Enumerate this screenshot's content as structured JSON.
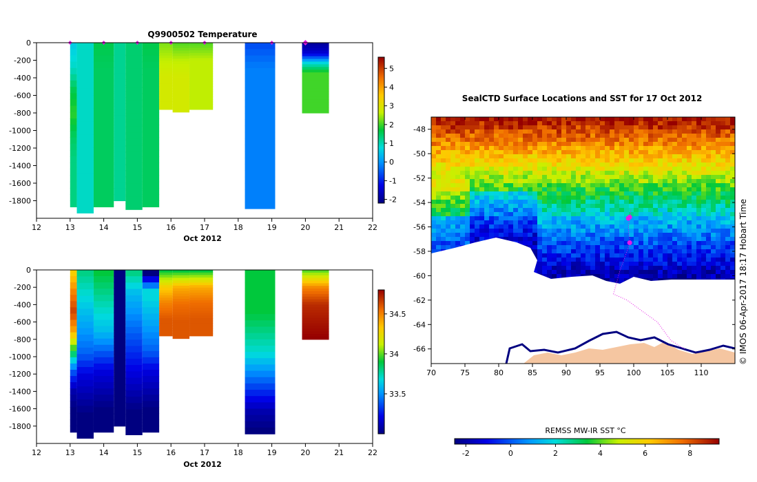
{
  "chart_data": [
    {
      "type": "heatmap",
      "title": "Q9900502  Temperature",
      "xlabel": "Oct 2012",
      "x_ticks": [
        "12",
        "13",
        "14",
        "15",
        "16",
        "17",
        "18",
        "19",
        "20",
        "21",
        "22"
      ],
      "x_range": [
        12,
        22
      ],
      "y_ticks": [
        "0",
        "-200",
        "-400",
        "-600",
        "-800",
        "-1000",
        "-1200",
        "-1400",
        "-1600",
        "-1800"
      ],
      "y_range": [
        -2000,
        0
      ],
      "colorbar_ticks": [
        "5",
        "4",
        "3",
        "2",
        "1",
        "0",
        "-1",
        "-2"
      ],
      "colorbar_range": [
        -2.2,
        5.6
      ],
      "surface_markers": [
        13.0,
        14.0,
        15.0,
        16.0,
        17.0,
        19.0,
        20.0
      ],
      "profiles": [
        {
          "t0": 13.0,
          "t1": 13.2,
          "depth": 1870,
          "values": [
            0.6,
            0.9,
            1.6,
            1.9,
            1.5,
            1.3,
            1.3,
            1.3
          ]
        },
        {
          "t0": 13.2,
          "t1": 13.7,
          "depth": 1940,
          "values": [
            0.9,
            0.9,
            0.9,
            0.9,
            0.9,
            0.9,
            0.9,
            0.9
          ]
        },
        {
          "t0": 13.7,
          "t1": 14.3,
          "depth": 1870,
          "values": [
            1.6,
            1.5,
            1.5,
            1.5,
            1.5,
            1.5,
            1.5,
            1.5
          ]
        },
        {
          "t0": 14.3,
          "t1": 14.65,
          "depth": 1800,
          "values": [
            1.2,
            1.2,
            1.2,
            1.2,
            1.2,
            1.2,
            1.2,
            1.2
          ]
        },
        {
          "t0": 14.65,
          "t1": 15.15,
          "depth": 1900,
          "values": [
            1.4,
            1.4,
            1.4,
            1.4,
            1.4,
            1.4,
            1.4,
            1.4
          ]
        },
        {
          "t0": 15.15,
          "t1": 15.65,
          "depth": 1870,
          "values": [
            1.6,
            1.5,
            1.5,
            1.5,
            1.5,
            1.5,
            1.5,
            1.5
          ]
        },
        {
          "t0": 15.65,
          "t1": 16.05,
          "depth": 760,
          "values": [
            2.3,
            2.6,
            2.8,
            2.8,
            2.8
          ]
        },
        {
          "t0": 16.05,
          "t1": 16.55,
          "depth": 790,
          "values": [
            2.1,
            2.6,
            2.8,
            2.8,
            2.8
          ]
        },
        {
          "t0": 16.55,
          "t1": 17.25,
          "depth": 760,
          "values": [
            2.1,
            2.6,
            2.6,
            2.6,
            2.6
          ]
        },
        {
          "t0": 18.2,
          "t1": 19.1,
          "depth": 1890,
          "values": [
            -0.6,
            -0.2,
            -0.2,
            -0.2,
            -0.2,
            -0.2,
            -0.2,
            -0.2
          ]
        },
        {
          "t0": 19.9,
          "t1": 20.7,
          "depth": 800,
          "values": [
            -1.9,
            -1.4,
            0.8,
            2.0,
            2.0,
            2.0,
            2.0,
            2.0
          ]
        }
      ]
    },
    {
      "type": "heatmap",
      "title": "",
      "xlabel": "Oct 2012",
      "x_ticks": [
        "12",
        "13",
        "14",
        "15",
        "16",
        "17",
        "18",
        "19",
        "20",
        "21",
        "22"
      ],
      "x_range": [
        12,
        22
      ],
      "y_ticks": [
        "0",
        "-200",
        "-400",
        "-600",
        "-800",
        "-1000",
        "-1200",
        "-1400",
        "-1600",
        "-1800"
      ],
      "y_range": [
        -2000,
        0
      ],
      "colorbar_ticks": [
        "34.5",
        "34",
        "33.5"
      ],
      "colorbar_range": [
        33.0,
        34.8
      ],
      "profiles": [
        {
          "t0": 13.0,
          "t1": 13.2,
          "depth": 1870,
          "values": [
            34.3,
            34.5,
            34.65,
            34.4,
            33.9,
            33.4,
            33.1,
            33.0,
            33.0
          ]
        },
        {
          "t0": 13.2,
          "t1": 13.7,
          "depth": 1940,
          "values": [
            33.8,
            33.7,
            33.6,
            33.5,
            33.4,
            33.2,
            33.1,
            33.0,
            33.0
          ]
        },
        {
          "t0": 13.7,
          "t1": 14.3,
          "depth": 1870,
          "values": [
            33.9,
            33.8,
            33.7,
            33.6,
            33.4,
            33.2,
            33.1,
            33.0,
            33.0
          ]
        },
        {
          "t0": 14.3,
          "t1": 14.65,
          "depth": 1800,
          "values": [
            33.0,
            33.0,
            33.0,
            33.0,
            33.0,
            33.0,
            33.0,
            33.0,
            33.0
          ]
        },
        {
          "t0": 14.65,
          "t1": 15.15,
          "depth": 1900,
          "values": [
            33.8,
            33.6,
            33.5,
            33.4,
            33.3,
            33.2,
            33.1,
            33.0,
            33.0
          ]
        },
        {
          "t0": 15.15,
          "t1": 15.65,
          "depth": 1870,
          "values": [
            33.0,
            33.7,
            33.6,
            33.5,
            33.4,
            33.2,
            33.1,
            33.0,
            33.0
          ]
        },
        {
          "t0": 15.65,
          "t1": 16.05,
          "depth": 760,
          "values": [
            33.9,
            34.3,
            34.5,
            34.6,
            34.6
          ]
        },
        {
          "t0": 16.05,
          "t1": 16.55,
          "depth": 790,
          "values": [
            33.9,
            34.4,
            34.55,
            34.6,
            34.6
          ]
        },
        {
          "t0": 16.55,
          "t1": 17.25,
          "depth": 760,
          "values": [
            33.9,
            34.4,
            34.55,
            34.6,
            34.6
          ]
        },
        {
          "t0": 18.2,
          "t1": 19.1,
          "depth": 1890,
          "values": [
            33.9,
            33.9,
            33.9,
            33.8,
            33.7,
            33.5,
            33.3,
            33.1,
            33.0
          ]
        },
        {
          "t0": 19.9,
          "t1": 20.7,
          "depth": 800,
          "values": [
            34.0,
            34.5,
            34.7,
            34.75,
            34.8
          ]
        }
      ]
    },
    {
      "type": "heatmap",
      "title": "SealCTD Surface Locations and SST for 17 Oct 2012",
      "x_ticks": [
        "70",
        "75",
        "80",
        "85",
        "90",
        "95",
        "100",
        "105",
        "110"
      ],
      "x_range": [
        70,
        115
      ],
      "y_ticks": [
        "-48",
        "-50",
        "-52",
        "-54",
        "-56",
        "-58",
        "-60",
        "-62",
        "-64",
        "-66"
      ],
      "y_range": [
        -67.2,
        -47.0
      ],
      "colorbar_label": "REMSS MW-IR SST °C",
      "colorbar_ticks": [
        "-2",
        "0",
        "2",
        "4",
        "6",
        "8"
      ],
      "colorbar_range": [
        -2.5,
        9.3
      ],
      "seal_track": [
        [
          99.6,
          -54.6
        ],
        [
          99.4,
          -55.3
        ],
        [
          99.2,
          -56.0
        ],
        [
          99.3,
          -56.6
        ],
        [
          99.5,
          -57.3
        ],
        [
          99.0,
          -58.0
        ],
        [
          98.0,
          -59.5
        ],
        [
          97.0,
          -61.5
        ],
        [
          99.0,
          -62.0
        ],
        [
          101.0,
          -62.8
        ],
        [
          103.5,
          -63.8
        ],
        [
          105.5,
          -65.3
        ],
        [
          107.5,
          -66.0
        ]
      ],
      "seal_positions": [
        [
          99.4,
          -55.2
        ],
        [
          99.2,
          -55.3
        ],
        [
          99.4,
          -57.3
        ]
      ]
    }
  ],
  "credit": "© IMOS 06-Apr-2017 18:17 Hobart Time",
  "colors": {
    "marker": "#e619e6",
    "land": "#f5c6a1",
    "coast": "#000080"
  }
}
